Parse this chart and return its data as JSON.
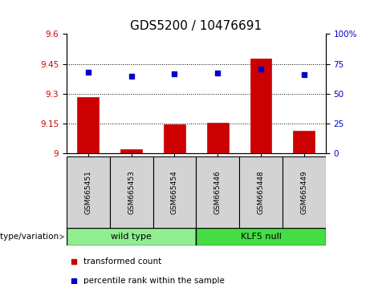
{
  "title": "GDS5200 / 10476691",
  "samples": [
    "GSM665451",
    "GSM665453",
    "GSM665454",
    "GSM665446",
    "GSM665448",
    "GSM665449"
  ],
  "bar_values": [
    9.285,
    9.02,
    9.145,
    9.155,
    9.475,
    9.115
  ],
  "percentile_values": [
    68.0,
    64.5,
    66.5,
    67.5,
    71.0,
    66.0
  ],
  "ylim_left": [
    9.0,
    9.6
  ],
  "ylim_right": [
    0,
    100
  ],
  "yticks_left": [
    9.0,
    9.15,
    9.3,
    9.45,
    9.6
  ],
  "yticks_right": [
    0,
    25,
    50,
    75,
    100
  ],
  "ytick_labels_left": [
    "9",
    "9.15",
    "9.3",
    "9.45",
    "9.6"
  ],
  "ytick_labels_right": [
    "0",
    "25",
    "50",
    "75",
    "100%"
  ],
  "bar_color": "#cc0000",
  "dot_color": "#0000cc",
  "bar_baseline": 9.0,
  "groups": [
    {
      "label": "wild type",
      "indices": [
        0,
        1,
        2
      ],
      "color": "#90ee90"
    },
    {
      "label": "KLF5 null",
      "indices": [
        3,
        4,
        5
      ],
      "color": "#44dd44"
    }
  ],
  "group_label": "genotype/variation",
  "legend_items": [
    {
      "label": "transformed count",
      "color": "#cc0000"
    },
    {
      "label": "percentile rank within the sample",
      "color": "#0000cc"
    }
  ],
  "grid_color": "black",
  "sample_box_color": "#d3d3d3",
  "title_fontsize": 11,
  "tick_fontsize": 7.5,
  "sample_fontsize": 6.5,
  "legend_fontsize": 7.5,
  "group_fontsize": 8
}
